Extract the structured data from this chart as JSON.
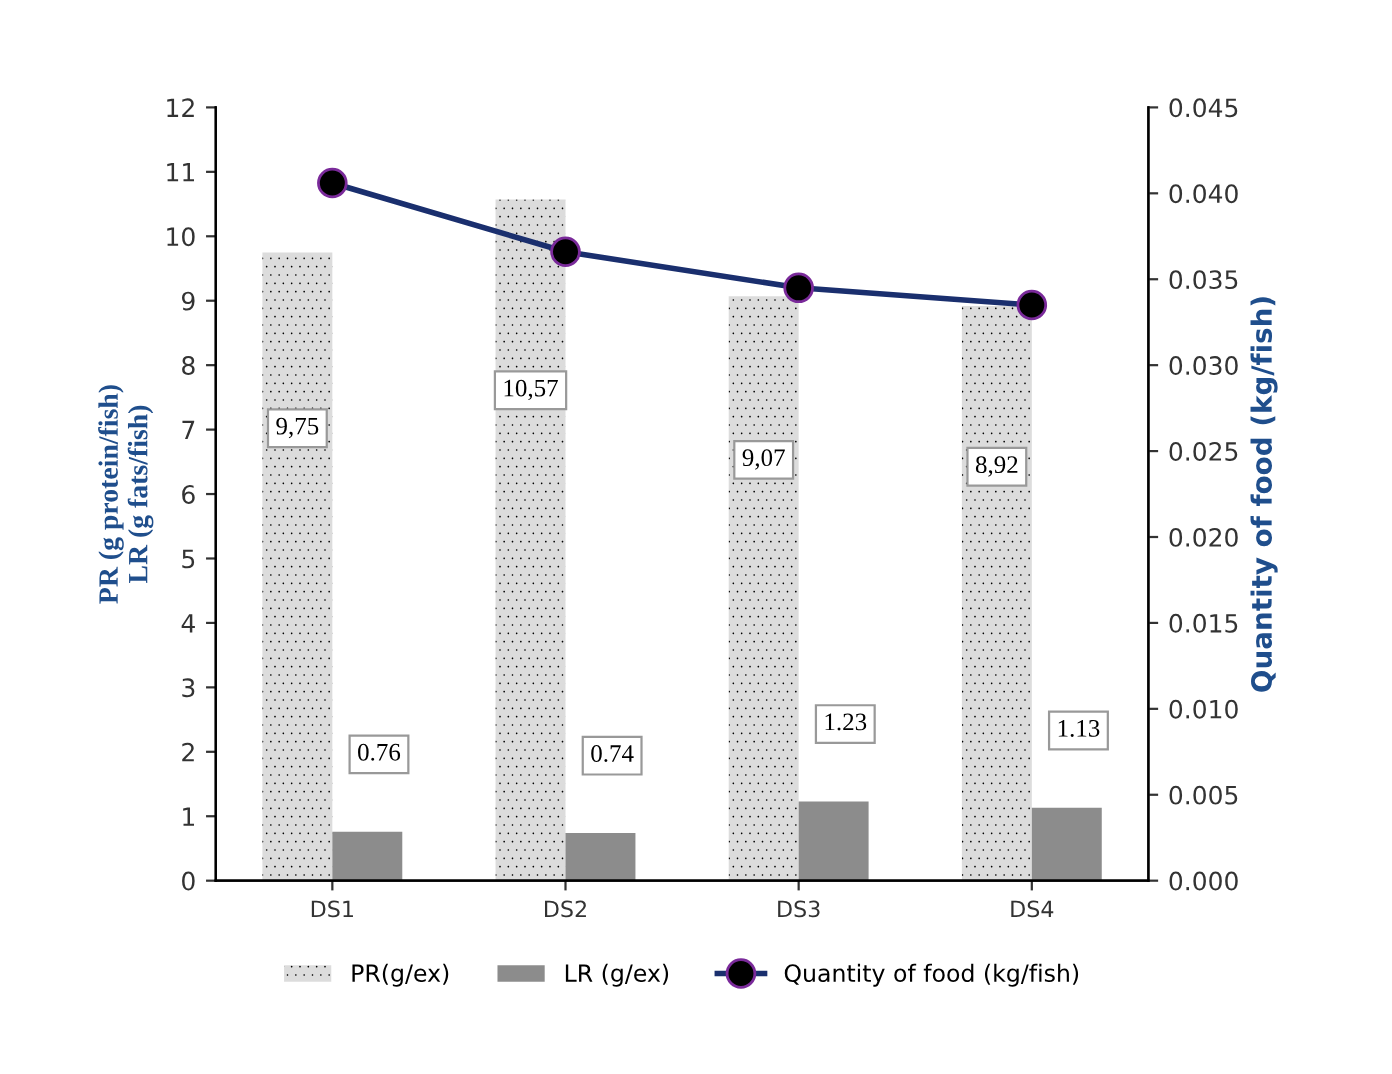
{
  "chart_data": {
    "type": "bar",
    "categories": [
      "DS1",
      "DS2",
      "DS3",
      "DS4"
    ],
    "ylabel": "PR (g protein/fish)\nLR (g fats/fish)",
    "y2label": "Quantity of food (kg/fish)",
    "series": [
      {
        "name": "PR(g/ex)",
        "color": "#dcdcdc",
        "values": [
          9.75,
          10.57,
          9.07,
          8.92
        ],
        "value_labels": [
          "9,75",
          "10,57",
          "9,07",
          "8,92"
        ]
      },
      {
        "name": "LR (g/ex)",
        "color": "#8c8c8c",
        "values": [
          0.76,
          0.74,
          1.23,
          1.13
        ],
        "value_labels": [
          "0.76",
          "0.74",
          "1.23",
          "1.13"
        ]
      },
      {
        "name": "Quantity of food (kg/fish)",
        "type": "line",
        "axis": "y2",
        "color": "#1a2f6e",
        "marker": "circle",
        "values": [
          0.0406,
          0.0366,
          0.0345,
          0.0335
        ]
      }
    ],
    "ylim": [
      0,
      12
    ],
    "yticks": [
      0,
      1,
      2,
      3,
      4,
      5,
      6,
      7,
      8,
      9,
      10,
      11,
      12
    ],
    "y2lim": [
      0,
      0.045
    ],
    "y2ticks": [
      {
        "value": 0,
        "label": "0.000"
      },
      {
        "value": 0.005,
        "label": "0.005"
      },
      {
        "value": 0.01,
        "label": "0.010"
      },
      {
        "value": 0.015,
        "label": "0.015"
      },
      {
        "value": 0.02,
        "label": "0.020"
      },
      {
        "value": 0.025,
        "label": "0.025"
      },
      {
        "value": 0.03,
        "label": "0.030"
      },
      {
        "value": 0.035,
        "label": "0.035"
      },
      {
        "value": 0.04,
        "label": "0.040"
      },
      {
        "value": 0.045,
        "label": "0.045"
      }
    ],
    "grid": false,
    "legend": "bottom"
  }
}
